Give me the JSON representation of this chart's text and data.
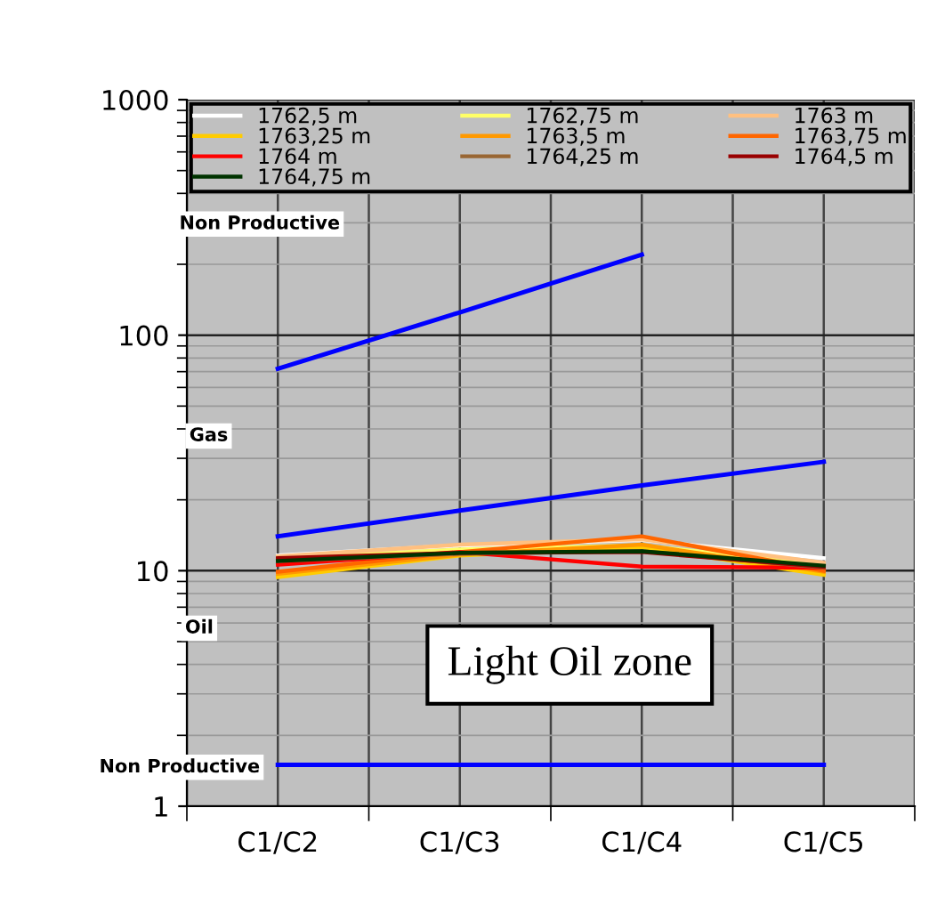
{
  "chart_data": {
    "type": "line",
    "log": "y",
    "grid": true,
    "legend": "top",
    "marker": "none",
    "line_style": "solid",
    "categories": [
      "C1/C2",
      "C1/C3",
      "C1/C4",
      "C1/C5"
    ],
    "ylim": [
      1,
      1000
    ],
    "yticks": [
      1,
      10,
      100,
      1000
    ],
    "series": [
      {
        "name": "1762,5 m",
        "color": "#ffffff",
        "values": [
          11.6,
          12.8,
          13.5,
          11.3
        ]
      },
      {
        "name": "1762,75 m",
        "color": "#ffff66",
        "values": [
          11.3,
          12.3,
          12.8,
          10.6
        ]
      },
      {
        "name": "1763 m",
        "color": "#ffc080",
        "values": [
          11.5,
          12.9,
          13.6,
          10.8
        ]
      },
      {
        "name": "1763,25 m",
        "color": "#ffcc00",
        "values": [
          9.4,
          11.6,
          12.6,
          9.6
        ]
      },
      {
        "name": "1763,5 m",
        "color": "#ff9900",
        "values": [
          9.7,
          11.7,
          12.9,
          9.9
        ]
      },
      {
        "name": "1763,75 m",
        "color": "#ff6600",
        "values": [
          9.9,
          12.0,
          14.0,
          10.0
        ]
      },
      {
        "name": "1764 m",
        "color": "#ff0000",
        "values": [
          10.6,
          12.0,
          10.4,
          10.3
        ]
      },
      {
        "name": "1764,25 m",
        "color": "#996633",
        "values": [
          11.0,
          11.8,
          12.1,
          10.3
        ]
      },
      {
        "name": "1764,5 m",
        "color": "#990000",
        "values": [
          11.3,
          11.9,
          12.0,
          10.4
        ]
      },
      {
        "name": "1764,75 m",
        "color": "#003300",
        "values": [
          11.0,
          11.9,
          12.1,
          10.5
        ]
      },
      {
        "color": "#0000ff",
        "values": [
          72,
          125,
          220,
          null
        ]
      },
      {
        "color": "#0000ff",
        "values": [
          14,
          18,
          23,
          29
        ]
      },
      {
        "color": "#0000ff",
        "values": [
          1.5,
          1.5,
          1.5,
          1.5
        ]
      }
    ],
    "annotations": [
      "Non Productive",
      "Gas",
      "Oil",
      "Non Productive",
      "Light Oil zone"
    ]
  }
}
